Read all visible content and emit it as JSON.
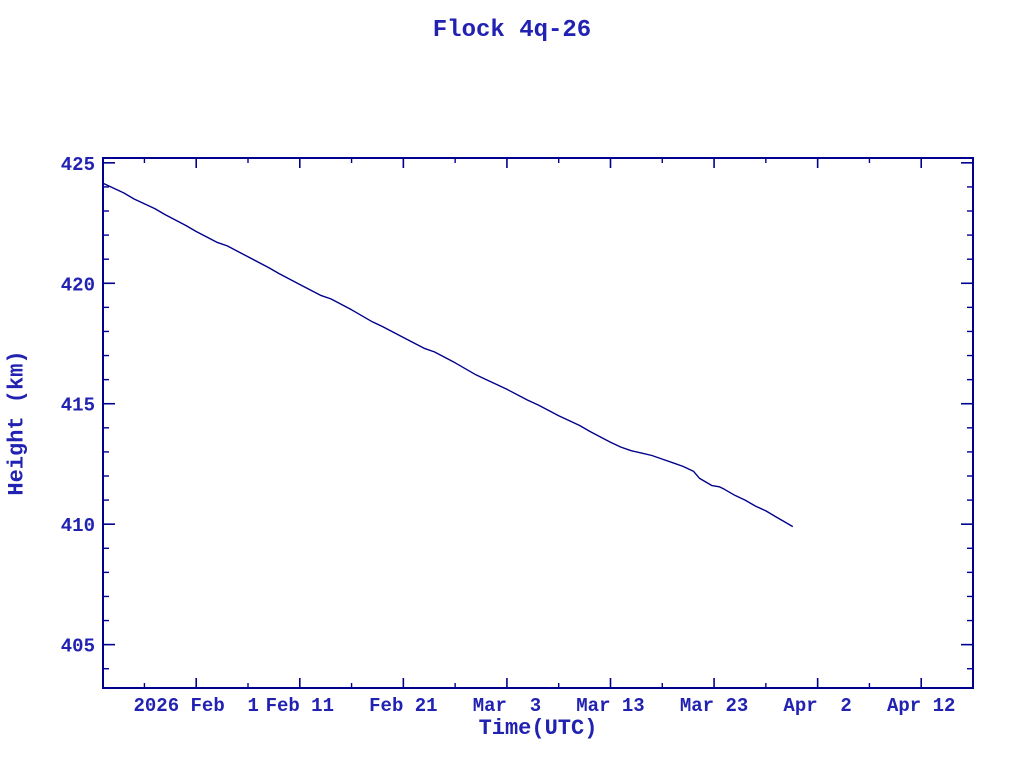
{
  "title": "Flock 4q-26",
  "colors": {
    "background": "#ffffff",
    "axis": "#000090",
    "line": "#00008b",
    "text": "#2222b2"
  },
  "chart_data": {
    "type": "line",
    "title": "Flock 4q-26",
    "xlabel": "Time(UTC)",
    "ylabel": "Height (km)",
    "x_epoch": "2026-01-23",
    "x_unit": "days since 2026-01-23 UTC",
    "xlim": [
      0,
      84
    ],
    "ylim": [
      403.2,
      425.2
    ],
    "grid": "off",
    "legend": "none",
    "x_major_ticks": [
      {
        "day": 9,
        "label": "2026 Feb  1"
      },
      {
        "day": 19,
        "label": "Feb 11"
      },
      {
        "day": 29,
        "label": "Feb 21"
      },
      {
        "day": 39,
        "label": "Mar  3"
      },
      {
        "day": 49,
        "label": "Mar 13"
      },
      {
        "day": 59,
        "label": "Mar 23"
      },
      {
        "day": 69,
        "label": "Apr  2"
      },
      {
        "day": 79,
        "label": "Apr 12"
      }
    ],
    "x_minor_ticks": [
      4,
      14,
      24,
      34,
      44,
      54,
      64,
      74
    ],
    "y_major_ticks": [
      {
        "value": 425,
        "label": "425"
      },
      {
        "value": 420,
        "label": "420"
      },
      {
        "value": 415,
        "label": "415"
      },
      {
        "value": 410,
        "label": "410"
      },
      {
        "value": 405,
        "label": "405"
      }
    ],
    "y_minor_ticks": [
      404,
      406,
      407,
      408,
      409,
      411,
      412,
      413,
      414,
      416,
      417,
      418,
      419,
      421,
      422,
      423,
      424
    ],
    "series": [
      {
        "name": "Flock 4q-26 height",
        "points": [
          [
            0,
            424.15
          ],
          [
            2,
            423.75
          ],
          [
            3,
            423.5
          ],
          [
            5,
            423.1
          ],
          [
            6,
            422.85
          ],
          [
            8,
            422.4
          ],
          [
            9,
            422.15
          ],
          [
            11,
            421.7
          ],
          [
            12,
            421.55
          ],
          [
            14,
            421.1
          ],
          [
            16,
            420.65
          ],
          [
            17,
            420.4
          ],
          [
            19,
            419.95
          ],
          [
            21,
            419.5
          ],
          [
            22,
            419.35
          ],
          [
            24,
            418.9
          ],
          [
            26,
            418.4
          ],
          [
            27,
            418.2
          ],
          [
            29,
            417.75
          ],
          [
            31,
            417.3
          ],
          [
            32,
            417.15
          ],
          [
            34,
            416.7
          ],
          [
            36,
            416.2
          ],
          [
            37,
            416.0
          ],
          [
            39,
            415.6
          ],
          [
            41,
            415.15
          ],
          [
            42,
            414.95
          ],
          [
            44,
            414.5
          ],
          [
            46,
            414.1
          ],
          [
            47,
            413.85
          ],
          [
            49,
            413.4
          ],
          [
            50,
            413.2
          ],
          [
            51,
            413.05
          ],
          [
            52,
            412.95
          ],
          [
            53,
            412.85
          ],
          [
            54,
            412.7
          ],
          [
            55,
            412.55
          ],
          [
            56,
            412.4
          ],
          [
            57,
            412.2
          ],
          [
            57.6,
            411.9
          ],
          [
            58.2,
            411.75
          ],
          [
            58.8,
            411.6
          ],
          [
            59.5,
            411.55
          ],
          [
            60,
            411.45
          ],
          [
            61,
            411.2
          ],
          [
            62,
            411.0
          ],
          [
            63,
            410.75
          ],
          [
            64,
            410.55
          ],
          [
            65,
            410.3
          ],
          [
            66,
            410.05
          ],
          [
            66.6,
            409.9
          ]
        ]
      }
    ]
  }
}
